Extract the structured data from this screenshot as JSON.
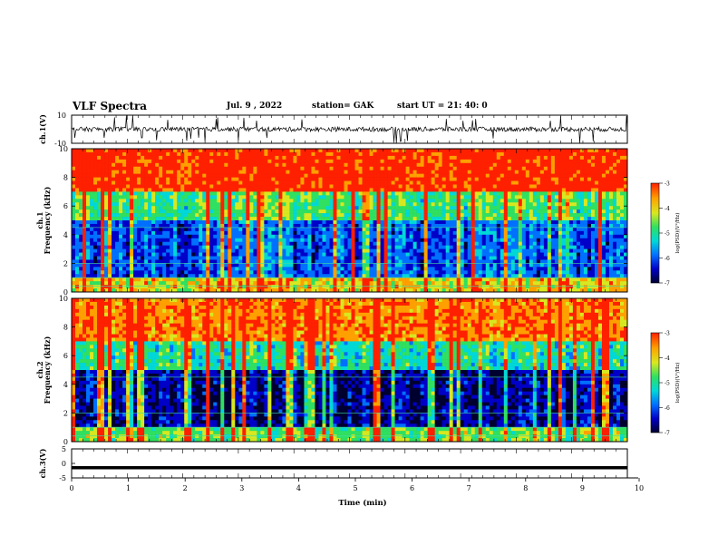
{
  "header": {
    "title": "VLF Spectra",
    "date": "Jul. 9 , 2022",
    "station": "station= GAK",
    "start_ut": "start UT =  21: 40: 0"
  },
  "colors": {
    "spectrogram_palette": [
      "#000030",
      "#0000c8",
      "#0070ff",
      "#00d8d8",
      "#30e060",
      "#d8e820",
      "#ffa000",
      "#ff2000"
    ],
    "axes": "#000000",
    "trace": "#000000"
  },
  "chart_data": [
    {
      "type": "line",
      "panel": "ch1-waveform",
      "ylabel": "ch.1(V)",
      "yticks": [
        "10",
        "-10"
      ],
      "ylim": [
        -10,
        10
      ],
      "xlim": [
        0,
        10
      ],
      "description_values": {
        "baseline": 0,
        "noise_amplitude": 2,
        "spikes_reach": 10
      }
    },
    {
      "type": "heatmap",
      "panel": "ch1-spectrogram",
      "ylabel": "Frequency (kHz)",
      "ylabel_channel": "ch.1",
      "yticks": [
        "0",
        "2",
        "4",
        "6",
        "8",
        "10"
      ],
      "ylim": [
        0,
        10
      ],
      "xlim": [
        0,
        10
      ],
      "colorbar": {
        "label": "log(PSD)(V²/Hz)",
        "ticks": [
          "-3",
          "-4",
          "-5",
          "-6",
          "-7"
        ],
        "range": [
          -7,
          -3
        ]
      },
      "band_levels": [
        {
          "from_khz": 0,
          "to_khz": 1,
          "level": -4.5
        },
        {
          "from_khz": 1,
          "to_khz": 5,
          "level": -6.3
        },
        {
          "from_khz": 5,
          "to_khz": 7,
          "level": -5.2
        },
        {
          "from_khz": 7,
          "to_khz": 10,
          "level": -3.4
        }
      ]
    },
    {
      "type": "heatmap",
      "panel": "ch2-spectrogram",
      "ylabel": "Frequency (kHz)",
      "ylabel_channel": "ch.2",
      "yticks": [
        "0",
        "2",
        "4",
        "6",
        "8",
        "10"
      ],
      "ylim": [
        0,
        10
      ],
      "xlim": [
        0,
        10
      ],
      "colorbar": {
        "label": "log(PSD)(V²/Hz)",
        "ticks": [
          "-3",
          "-4",
          "-5",
          "-6",
          "-7"
        ],
        "range": [
          -7,
          -3
        ]
      },
      "band_levels": [
        {
          "from_khz": 0,
          "to_khz": 1,
          "level": -5.0
        },
        {
          "from_khz": 1,
          "to_khz": 5,
          "level": -6.8
        },
        {
          "from_khz": 5,
          "to_khz": 7,
          "level": -5.4
        },
        {
          "from_khz": 7,
          "to_khz": 10,
          "level": -3.8
        }
      ]
    },
    {
      "type": "line",
      "panel": "ch3-waveform",
      "ylabel": "ch.3(V)",
      "yticks": [
        "5",
        "0",
        "-5"
      ],
      "ylim": [
        -5,
        5
      ],
      "xlim": [
        0,
        10
      ],
      "description_values": {
        "constant_level": -1.5
      }
    }
  ],
  "xaxis": {
    "label": "Time (min)",
    "ticks": [
      "0",
      "1",
      "2",
      "3",
      "4",
      "5",
      "6",
      "7",
      "8",
      "9",
      "10"
    ]
  }
}
